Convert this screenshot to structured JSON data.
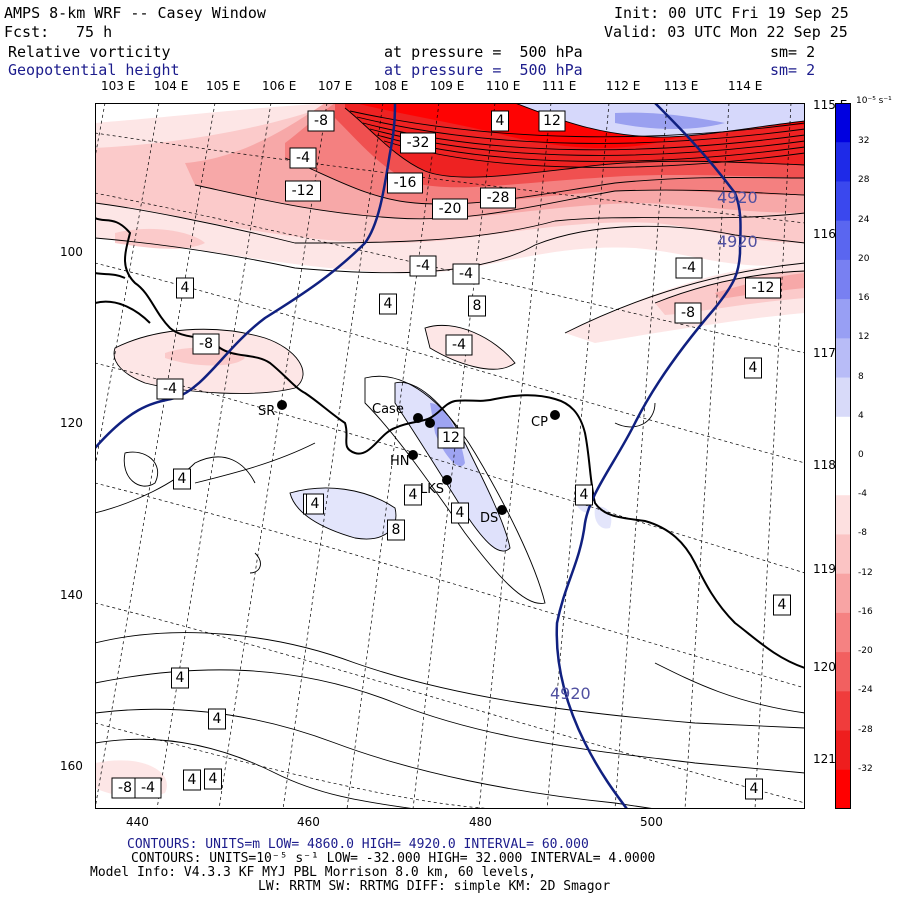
{
  "header": {
    "model": "AMPS 8-km WRF -- Casey Window",
    "init": "Init: 00 UTC Fri 19 Sep 25",
    "fcst_label": "Fcst:",
    "fcst_value": "75 h",
    "valid": "Valid: 03 UTC Mon 22 Sep 25",
    "field1_name": "Relative vorticity",
    "field1_level": "at pressure =  500 hPa",
    "field1_sm": "sm= 2",
    "field2_name": "Geopotential height",
    "field2_level": "at pressure =  500 hPa",
    "field2_sm": "sm= 2"
  },
  "axes": {
    "top_longitudes": [
      "103 E",
      "104 E",
      "105 E",
      "106 E",
      "107 E",
      "108 E",
      "109 E",
      "110 E",
      "111 E",
      "112 E",
      "113 E",
      "114 E"
    ],
    "right_latitudes": [
      "115 E",
      "116 E",
      "117 E",
      "118 E",
      "119 E",
      "120 E",
      "121 E"
    ],
    "x_ticks": [
      "440",
      "460",
      "480",
      "500"
    ],
    "y_ticks": [
      "100",
      "120",
      "140",
      "160"
    ]
  },
  "colorbar": {
    "unit": "10⁻⁵ s⁻¹",
    "ticks": [
      "32",
      "28",
      "24",
      "20",
      "16",
      "12",
      "8",
      "4",
      "0",
      "-4",
      "-8",
      "-12",
      "-16",
      "-20",
      "-24",
      "-28",
      "-32"
    ]
  },
  "stations": [
    {
      "name": "SR"
    },
    {
      "name": "Case"
    },
    {
      "name": "HN"
    },
    {
      "name": "LKS"
    },
    {
      "name": "DS"
    },
    {
      "name": "CP"
    }
  ],
  "contour_labels": {
    "vorticity": [
      "-8",
      "-4",
      "-12",
      "-16",
      "-32",
      "-20",
      "-28",
      "4",
      "12",
      "8",
      "-12",
      "-4",
      "-8",
      "-8",
      "-4",
      "-4",
      "4",
      "4",
      "-4",
      "4",
      "-8",
      "4",
      "-4",
      "12",
      "4",
      "8",
      "8",
      "4",
      "4",
      "4",
      "4",
      "4",
      "4",
      "4",
      "4",
      "-4",
      "4"
    ],
    "height": [
      "4920",
      "4920",
      "4920"
    ]
  },
  "footer": {
    "line1": "CONTOURS:  UNITS=m  LOW=  4860.0      HIGH=  4920.0      INTERVAL=   60.000",
    "line2": "CONTOURS:  UNITS=10⁻⁵ s⁻¹  LOW= -32.000      HIGH=  32.000      INTERVAL=   4.0000",
    "line3": "Model Info: V4.3.3   KF      MYJ PBL  Morrison           8.0 km,  60 levels,",
    "line4": "LW: RRTM SW: RRTMG   DIFF: simple KM: 2D Smagor"
  },
  "colors": {
    "height_contour": "#102080",
    "neg_max": "#ff0000",
    "pos_max": "#0000e0"
  }
}
